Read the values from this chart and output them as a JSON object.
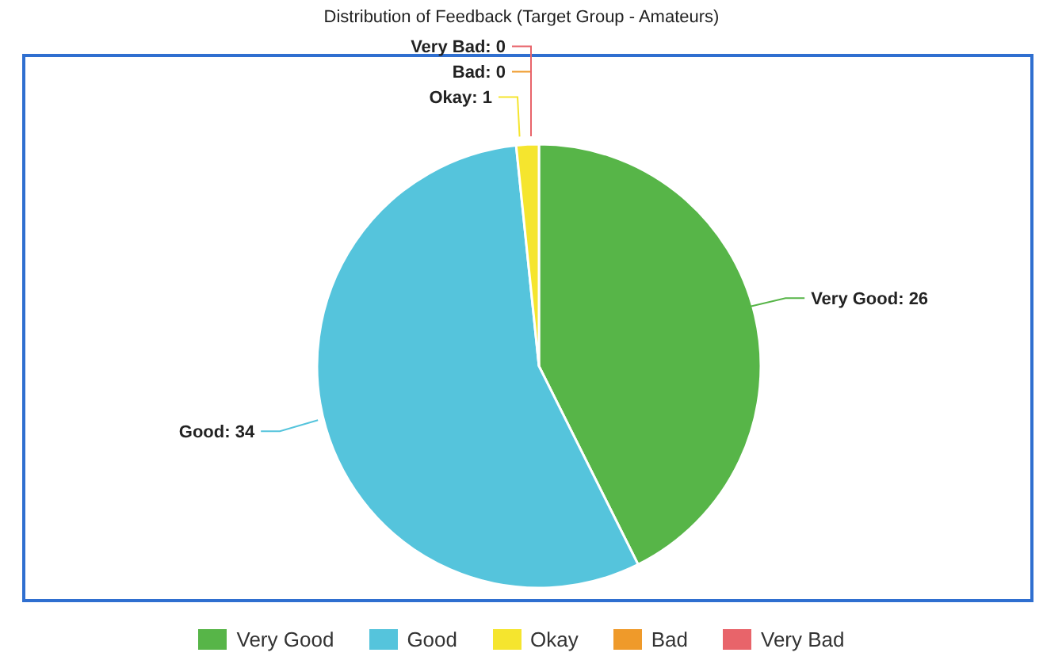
{
  "chart_data": {
    "type": "pie",
    "title": "Distribution of Feedback (Target Group - Amateurs)",
    "categories": [
      "Very Good",
      "Good",
      "Okay",
      "Bad",
      "Very Bad"
    ],
    "values": [
      26,
      34,
      1,
      0,
      0
    ],
    "colors": [
      "#57b548",
      "#55c4dc",
      "#f5e52e",
      "#ef9a2a",
      "#e8646a"
    ],
    "value_labels": [
      "Very Good: 26",
      "Good: 34",
      "Okay: 1",
      "Bad: 0",
      "Very Bad: 0"
    ],
    "legend": "bottom"
  }
}
